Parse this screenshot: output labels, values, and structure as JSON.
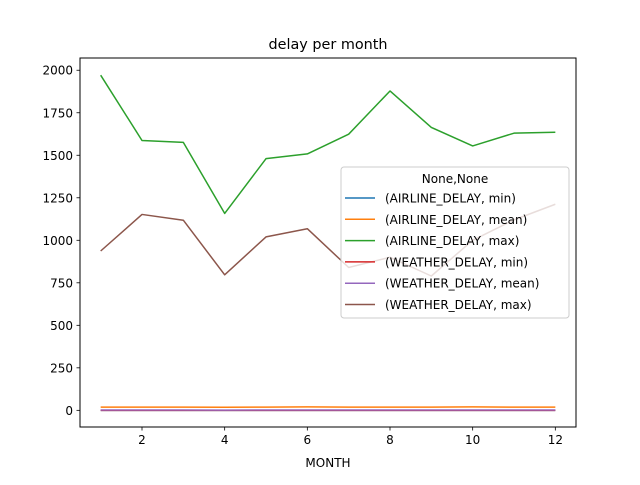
{
  "chart_data": {
    "type": "line",
    "title": "delay per month",
    "xlabel": "MONTH",
    "ylabel": "",
    "x": [
      1,
      2,
      3,
      4,
      5,
      6,
      7,
      8,
      9,
      10,
      11,
      12
    ],
    "xlim": [
      0.5,
      12.5
    ],
    "ylim": [
      -98,
      2072
    ],
    "xticks": [
      "2",
      "4",
      "6",
      "8",
      "10",
      "12"
    ],
    "yticks": [
      "0",
      "250",
      "500",
      "750",
      "1000",
      "1250",
      "1500",
      "1750",
      "2000"
    ],
    "legend": {
      "title": "None,None",
      "placement": "center-right"
    },
    "series": [
      {
        "name": "(AIRLINE_DELAY, min)",
        "color": "#1f77b4",
        "values": [
          0,
          0,
          0,
          0,
          0,
          0,
          0,
          0,
          0,
          0,
          0,
          0
        ]
      },
      {
        "name": "(AIRLINE_DELAY, mean)",
        "color": "#ff7f0e",
        "values": [
          19,
          19,
          19,
          18,
          19,
          20,
          19,
          19,
          19,
          20,
          19,
          19
        ]
      },
      {
        "name": "(AIRLINE_DELAY, max)",
        "color": "#2ca02c",
        "values": [
          1971,
          1587,
          1576,
          1158,
          1480,
          1508,
          1624,
          1878,
          1664,
          1555,
          1630,
          1635
        ]
      },
      {
        "name": "(WEATHER_DELAY, min)",
        "color": "#d62728",
        "values": [
          0,
          0,
          0,
          0,
          0,
          0,
          0,
          0,
          0,
          0,
          0,
          0
        ]
      },
      {
        "name": "(WEATHER_DELAY, mean)",
        "color": "#9467bd",
        "values": [
          2,
          2,
          2,
          1,
          2,
          2,
          2,
          2,
          2,
          2,
          2,
          2
        ]
      },
      {
        "name": "(WEATHER_DELAY, max)",
        "color": "#8c564b",
        "values": [
          937,
          1152,
          1118,
          797,
          1020,
          1068,
          840,
          900,
          790,
          1000,
          1120,
          1212
        ]
      }
    ]
  }
}
